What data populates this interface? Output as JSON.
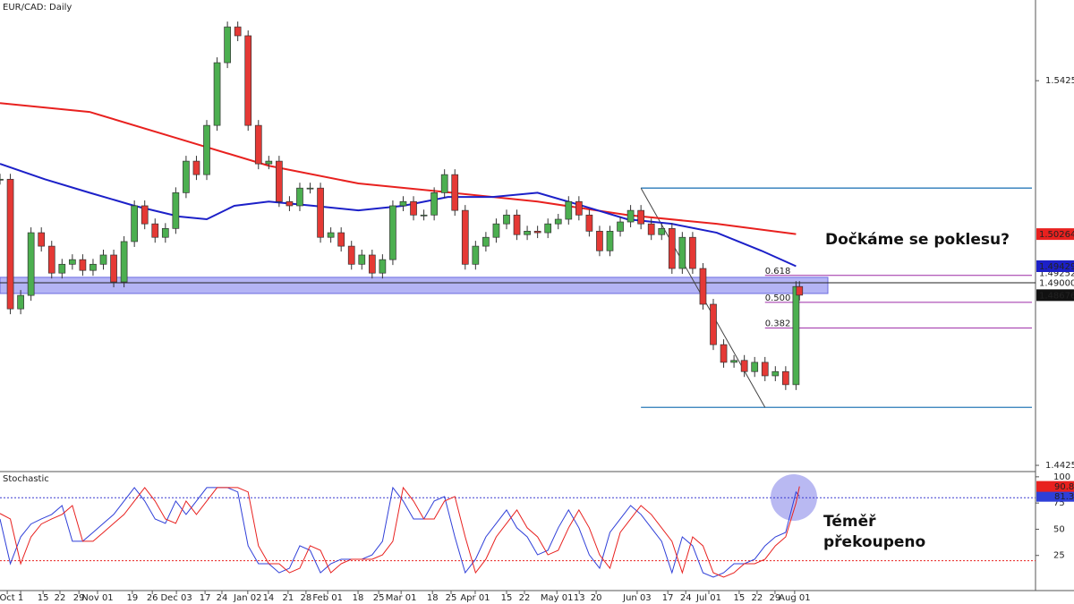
{
  "chart_data": [
    {
      "type": "candlestick",
      "title": "EUR/CAD: Daily",
      "x": [
        0,
        3,
        6,
        9,
        12,
        15,
        18,
        21,
        24,
        27,
        30,
        33,
        36,
        39,
        42,
        45,
        48,
        51,
        54,
        57,
        60,
        63,
        66,
        69,
        72,
        75,
        78,
        81,
        84,
        87,
        90,
        93,
        96,
        99,
        102,
        105,
        108,
        111,
        114,
        117,
        120,
        123,
        126,
        129,
        132,
        135,
        138,
        141,
        144,
        147,
        150,
        153,
        156,
        159,
        162,
        165,
        168,
        171,
        174,
        177,
        180,
        183,
        186,
        189,
        192,
        195,
        198,
        201,
        204,
        207,
        210,
        213,
        216,
        219,
        222,
        225,
        228,
        231,
        232
      ],
      "close": [
        1.5169,
        1.4832,
        1.4867,
        1.503,
        1.4995,
        1.4925,
        1.4948,
        1.496,
        1.4932,
        1.4948,
        1.4972,
        1.4902,
        1.5007,
        1.51,
        1.5053,
        1.5018,
        1.5041,
        1.5134,
        1.5216,
        1.5181,
        1.5309,
        1.5472,
        1.5565,
        1.5542,
        1.5309,
        1.5209,
        1.5216,
        1.5111,
        1.51,
        1.5146,
        1.5146,
        1.5018,
        1.503,
        1.4995,
        1.4948,
        1.4972,
        1.4925,
        1.496,
        1.51,
        1.5111,
        1.5076,
        1.5076,
        1.5134,
        1.5181,
        1.5088,
        1.4948,
        1.4995,
        1.5018,
        1.5053,
        1.5076,
        1.5025,
        1.5034,
        1.503,
        1.5053,
        1.5065,
        1.5111,
        1.5076,
        1.5034,
        1.4983,
        1.5034,
        1.5058,
        1.5088,
        1.5053,
        1.5025,
        1.5041,
        1.4937,
        1.5018,
        1.4937,
        1.4844,
        1.4739,
        1.4693,
        1.4698,
        1.4669,
        1.4693,
        1.4658,
        1.4669,
        1.4635,
        1.489,
        1.48676
      ],
      "up_color": "#4caf50",
      "down_color": "#e53935",
      "series": [
        {
          "color": "#e8211f",
          "x": [
            0,
            26,
            52,
            78,
            104,
            130,
            156,
            182,
            208,
            231
          ],
          "values": [
            1.5367,
            1.5344,
            1.5274,
            1.5204,
            1.5158,
            1.5135,
            1.5111,
            1.5076,
            1.5053,
            1.50264
          ]
        },
        {
          "color": "#1c20c8",
          "x": [
            0,
            13,
            26,
            39,
            52,
            60,
            68,
            78,
            91,
            104,
            117,
            130,
            143,
            156,
            169,
            182,
            195,
            208,
            221,
            231
          ],
          "values": [
            1.5209,
            1.5169,
            1.5134,
            1.51,
            1.5072,
            1.5065,
            1.51,
            1.5111,
            1.51,
            1.5088,
            1.51,
            1.5123,
            1.5123,
            1.5134,
            1.51,
            1.5065,
            1.5053,
            1.503,
            1.4983,
            1.49429
          ]
        }
      ],
      "zone": [
        1.4872,
        1.4914
      ],
      "zone_color": "#9b9bf2",
      "hline": {
        "value": 1.49,
        "label": "1.49000"
      },
      "price_tag": 1.49252,
      "trendline": {
        "x": [
          186,
          222
        ],
        "y": [
          1.5146,
          1.4576
        ]
      },
      "fib_levels": [
        {
          "value": 1.4919,
          "label": "0.618"
        },
        {
          "value": 1.4849,
          "label": "0.500"
        },
        {
          "value": 1.4782,
          "label": "0.382"
        }
      ],
      "annotation": "Dočkáme se poklesu?",
      "ylim": [
        1.4409,
        1.5635
      ],
      "yticks": [
        1.54252,
        1.44252
      ],
      "xlim": [
        0,
        300.5
      ],
      "xticks": [
        {
          "value": 2.1,
          "label": "Oct"
        },
        {
          "value": 6,
          "label": "1"
        },
        {
          "value": 12.5,
          "label": "15"
        },
        {
          "value": 17.4,
          "label": "22"
        },
        {
          "value": 22.9,
          "label": "29"
        },
        {
          "value": 28.3,
          "label": "Nov 01"
        },
        {
          "value": 38.4,
          "label": "19"
        },
        {
          "value": 44.2,
          "label": "26"
        },
        {
          "value": 51.2,
          "label": "Dec 03"
        },
        {
          "value": 59.5,
          "label": "17"
        },
        {
          "value": 64.4,
          "label": "24"
        },
        {
          "value": 71.9,
          "label": "Jan 02"
        },
        {
          "value": 77.9,
          "label": "14"
        },
        {
          "value": 83.6,
          "label": "21"
        },
        {
          "value": 88.8,
          "label": "28"
        },
        {
          "value": 95.1,
          "label": "Feb 01"
        },
        {
          "value": 103.9,
          "label": "18"
        },
        {
          "value": 109.9,
          "label": "25"
        },
        {
          "value": 116.4,
          "label": "Mar 01"
        },
        {
          "value": 125.5,
          "label": "18"
        },
        {
          "value": 130.9,
          "label": "25"
        },
        {
          "value": 137.9,
          "label": "Apr 01"
        },
        {
          "value": 147,
          "label": "15"
        },
        {
          "value": 152.2,
          "label": "22"
        },
        {
          "value": 161.6,
          "label": "May 01"
        },
        {
          "value": 168.1,
          "label": "13"
        },
        {
          "value": 173,
          "label": "20"
        },
        {
          "value": 184.9,
          "label": "Jun 03"
        },
        {
          "value": 193.8,
          "label": "17"
        },
        {
          "value": 199,
          "label": "24"
        },
        {
          "value": 205.7,
          "label": "Jul 01"
        },
        {
          "value": 214.5,
          "label": "15"
        },
        {
          "value": 219.7,
          "label": "22"
        },
        {
          "value": 224.9,
          "label": "29"
        },
        {
          "value": 230.6,
          "label": "Aug 01"
        }
      ]
    },
    {
      "type": "line",
      "title": "Stochastic",
      "series": [
        {
          "color": "#2f3fd8",
          "values": [
            59.8,
            17.1,
            42.7,
            55,
            59.8,
            64.1,
            72.6,
            38.5,
            38.5,
            47.0,
            55.6,
            64.1,
            76.9,
            89.7,
            76.9,
            59.8,
            55.6,
            76.9,
            64.1,
            76.9,
            89.7,
            89.7,
            89.7,
            85.5,
            34.2,
            17.1,
            17.1,
            8.5,
            12.8,
            34.2,
            29.9,
            8.5,
            17.1,
            21.4,
            21.4,
            21.4,
            25.6,
            38.5,
            89.7,
            76.9,
            59.8,
            59.8,
            76.9,
            81.2,
            42.7,
            8.5,
            21.4,
            42.7,
            55.6,
            68.4,
            51.3,
            42.7,
            25.6,
            29.9,
            51.3,
            68.4,
            51.3,
            25.6,
            12.8,
            47.0,
            59.8,
            72.6,
            64.1,
            51.3,
            38.5,
            8.5,
            42.7,
            34.2,
            8.5,
            4.3,
            8.5,
            17.1,
            17.1,
            21.4,
            34.2,
            42.7,
            47.0,
            85.5,
            81.38
          ]
        },
        {
          "color": "#e8211f",
          "values": [
            65,
            59.8,
            17.1,
            42.7,
            55,
            59.8,
            64.1,
            72.6,
            38.5,
            38.5,
            47.0,
            55.6,
            64.1,
            76.9,
            89.7,
            76.9,
            59.8,
            55.6,
            76.9,
            64.1,
            76.9,
            89.7,
            89.7,
            89.7,
            85.5,
            34.2,
            17.1,
            17.1,
            8.5,
            12.8,
            34.2,
            29.9,
            8.5,
            17.1,
            21.4,
            21.4,
            21.4,
            25.6,
            38.5,
            89.7,
            76.9,
            59.8,
            59.8,
            76.9,
            81.2,
            42.7,
            8.5,
            21.4,
            42.7,
            55.6,
            68.4,
            51.3,
            42.7,
            25.6,
            29.9,
            51.3,
            68.4,
            51.3,
            25.6,
            12.8,
            47.0,
            59.8,
            72.6,
            64.1,
            51.3,
            38.5,
            8.5,
            42.7,
            34.2,
            8.5,
            4.3,
            8.5,
            17.1,
            17.1,
            21.4,
            34.2,
            42.7,
            75.0,
            90.83
          ]
        }
      ],
      "levels": [
        {
          "value": 80,
          "color": "#3a3ad0"
        },
        {
          "value": 20,
          "color": "#e8211f"
        }
      ],
      "annotation": [
        "Téměř",
        "překoupeno"
      ],
      "ylim": [
        -8.5,
        105
      ],
      "yticks": [
        100,
        75,
        50,
        25
      ]
    }
  ]
}
